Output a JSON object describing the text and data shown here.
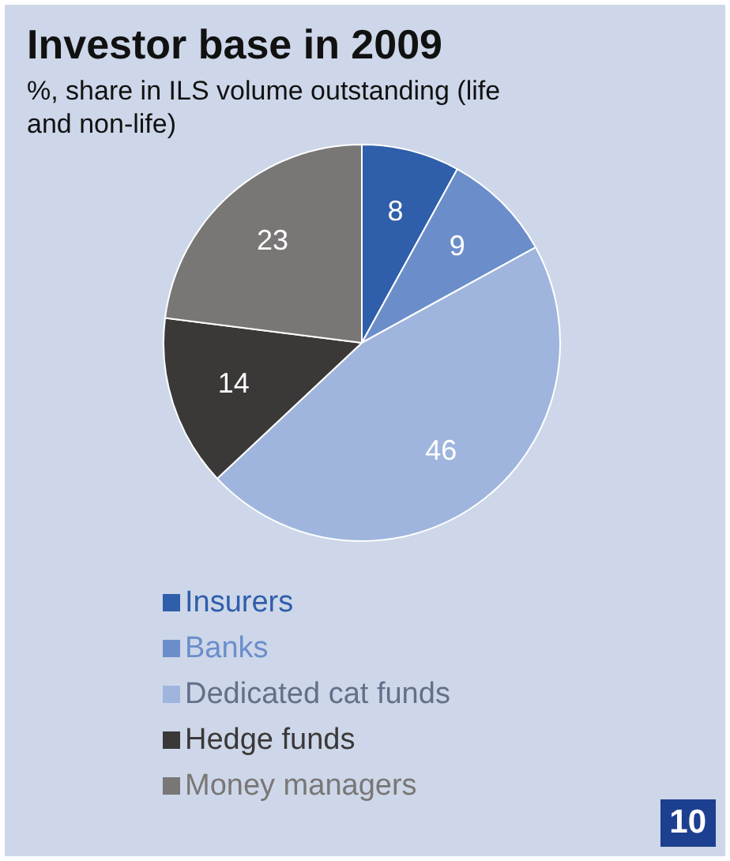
{
  "chart_data": {
    "type": "pie",
    "title": "Investor base in 2009",
    "subtitle": "%, share in ILS volume outstanding (life and non-life)",
    "categories": [
      "Insurers",
      "Banks",
      "Dedicated cat funds",
      "Hedge funds",
      "Money managers"
    ],
    "values": [
      8,
      9,
      46,
      14,
      23
    ],
    "colors": [
      "#2f5eaa",
      "#6b8ecb",
      "#9fb5dd",
      "#3b3838",
      "#797776"
    ],
    "data_labels": true,
    "legend": "bottom",
    "annotations": [
      "10"
    ]
  }
}
